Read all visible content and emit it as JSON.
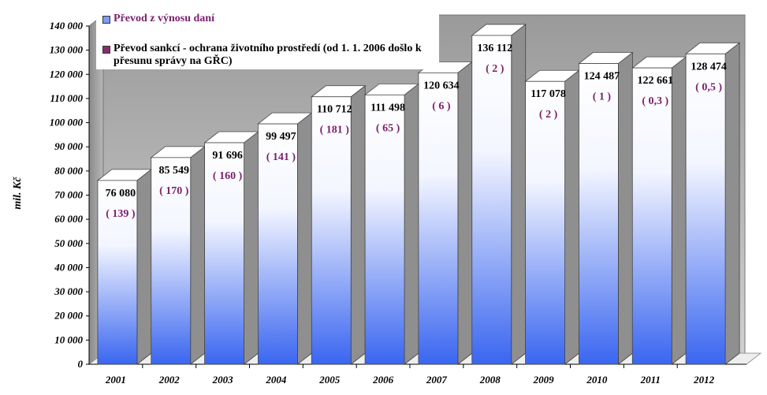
{
  "chart_data": {
    "type": "bar",
    "title": "",
    "xlabel": "",
    "ylabel": "mil. Kč",
    "ylim": [
      0,
      140000
    ],
    "y_ticks": [
      "0",
      "10 000",
      "20 000",
      "30 000",
      "40 000",
      "50 000",
      "60 000",
      "70 000",
      "80 000",
      "90 000",
      "100 000",
      "110 000",
      "120 000",
      "130 000",
      "140 000"
    ],
    "categories": [
      "2001",
      "2002",
      "2003",
      "2004",
      "2005",
      "2006",
      "2007",
      "2008",
      "2009",
      "2010",
      "2011",
      "2012"
    ],
    "series": [
      {
        "name": "Převod z výnosu daní",
        "values": [
          76080,
          85549,
          91696,
          99497,
          110712,
          111498,
          120634,
          136112,
          117078,
          124487,
          122661,
          128474
        ],
        "labels": [
          "76 080",
          "85 549",
          "91 696",
          "99 497",
          "110 712",
          "111 498",
          "120 634",
          "136 112",
          "117 078",
          "124 487",
          "122 661",
          "128 474"
        ],
        "color": "#3a66f0"
      },
      {
        "name": "Převod sankcí - ochrana životního prostředí (od 1. 1. 2006 došlo k přesunu správy na GŘC)",
        "values": [
          139,
          170,
          160,
          141,
          181,
          65,
          6,
          2,
          2,
          1,
          0.3,
          0.5
        ],
        "labels": [
          "( 139 )",
          "( 170 )",
          "( 160 )",
          "( 141 )",
          "( 181 )",
          "( 65 )",
          "( 6 )",
          "( 2 )",
          "( 2 )",
          "( 1 )",
          "( 0,3 )",
          "( 0,5 )"
        ],
        "color": "#8b2b6b"
      }
    ],
    "legend_position": "top-left",
    "grid": false
  }
}
